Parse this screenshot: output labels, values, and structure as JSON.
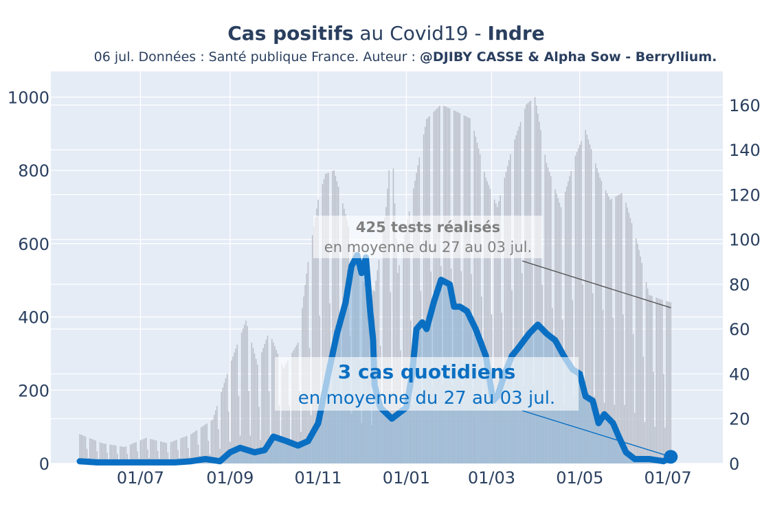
{
  "header": {
    "title_bold": "Cas positifs",
    "title_mid": " au Covid19 - ",
    "title_region": "Indre",
    "subtitle_plain": "06 jul. Données : Santé publique France. Auteur : ",
    "subtitle_bold": "@DJIBY CASSE & Alpha Sow - Berryllium."
  },
  "colors": {
    "background": "#ffffff",
    "plot_background": "#e5ecf6",
    "grid": "#ffffff",
    "cases_line": "#0a6fc2",
    "cases_fill": "#8ab4d8",
    "tests_bars": "#b8bcc6",
    "tests_annotation": "#7f7f7f",
    "text": "#2a3f5f"
  },
  "chart_data": {
    "type": "line",
    "x_start": "2020-05-20",
    "x_end": "2021-07-03",
    "xticks": [
      "01/07",
      "01/09",
      "01/11",
      "01/01",
      "01/03",
      "01/05",
      "01/07"
    ],
    "xtick_dates": [
      "2020-07-01",
      "2020-09-01",
      "2020-11-01",
      "2021-01-01",
      "2021-03-01",
      "2021-05-01",
      "2021-07-01"
    ],
    "y_left": {
      "range": [
        0,
        1070
      ],
      "ticks": [
        0,
        200,
        400,
        600,
        800,
        1000
      ],
      "series": "tests"
    },
    "y_right": {
      "range": [
        0,
        175
      ],
      "ticks": [
        0,
        20,
        40,
        60,
        80,
        100,
        120,
        140,
        160
      ],
      "series": "cases"
    },
    "grid": true,
    "series": [
      {
        "axis": "left",
        "style": "bars",
        "interpolation": "linear",
        "points": [
          [
            "2020-05-20",
            80
          ],
          [
            "2020-06-05",
            55
          ],
          [
            "2020-06-20",
            45
          ],
          [
            "2020-07-05",
            70
          ],
          [
            "2020-07-20",
            55
          ],
          [
            "2020-08-05",
            80
          ],
          [
            "2020-08-20",
            120
          ],
          [
            "2020-09-01",
            270
          ],
          [
            "2020-09-12",
            390
          ],
          [
            "2020-09-20",
            270
          ],
          [
            "2020-09-28",
            360
          ],
          [
            "2020-10-08",
            260
          ],
          [
            "2020-10-18",
            330
          ],
          [
            "2020-10-25",
            550
          ],
          [
            "2020-11-01",
            720
          ],
          [
            "2020-11-06",
            790
          ],
          [
            "2020-11-12",
            800
          ],
          [
            "2020-11-20",
            680
          ],
          [
            "2020-12-01",
            500
          ],
          [
            "2020-12-10",
            470
          ],
          [
            "2020-12-18",
            700
          ],
          [
            "2020-12-22",
            900
          ],
          [
            "2020-12-26",
            520
          ],
          [
            "2021-01-05",
            730
          ],
          [
            "2021-01-15",
            940
          ],
          [
            "2021-01-25",
            980
          ],
          [
            "2021-02-05",
            960
          ],
          [
            "2021-02-15",
            940
          ],
          [
            "2021-02-25",
            780
          ],
          [
            "2021-03-05",
            700
          ],
          [
            "2021-03-15",
            860
          ],
          [
            "2021-03-25",
            980
          ],
          [
            "2021-03-31",
            1000
          ],
          [
            "2021-04-08",
            820
          ],
          [
            "2021-04-18",
            700
          ],
          [
            "2021-04-28",
            840
          ],
          [
            "2021-05-05",
            910
          ],
          [
            "2021-05-15",
            780
          ],
          [
            "2021-05-22",
            720
          ],
          [
            "2021-05-31",
            740
          ],
          [
            "2021-06-10",
            600
          ],
          [
            "2021-06-18",
            460
          ],
          [
            "2021-06-28",
            445
          ],
          [
            "2021-07-03",
            440
          ]
        ]
      },
      {
        "axis": "right",
        "style": "line+area",
        "interpolation": "linear",
        "points": [
          [
            "2020-05-20",
            1
          ],
          [
            "2020-06-01",
            0.5
          ],
          [
            "2020-07-01",
            0.5
          ],
          [
            "2020-07-25",
            0.5
          ],
          [
            "2020-08-05",
            1
          ],
          [
            "2020-08-15",
            2
          ],
          [
            "2020-08-25",
            1
          ],
          [
            "2020-09-01",
            5
          ],
          [
            "2020-09-08",
            7
          ],
          [
            "2020-09-18",
            5
          ],
          [
            "2020-09-25",
            6
          ],
          [
            "2020-10-01",
            12
          ],
          [
            "2020-10-10",
            10
          ],
          [
            "2020-10-18",
            8
          ],
          [
            "2020-10-25",
            10
          ],
          [
            "2020-11-01",
            18
          ],
          [
            "2020-11-08",
            40
          ],
          [
            "2020-11-14",
            58
          ],
          [
            "2020-11-20",
            72
          ],
          [
            "2020-11-24",
            88
          ],
          [
            "2020-11-28",
            93
          ],
          [
            "2020-12-01",
            85
          ],
          [
            "2020-12-04",
            92
          ],
          [
            "2020-12-07",
            68
          ],
          [
            "2020-12-09",
            55
          ],
          [
            "2020-12-10",
            35
          ],
          [
            "2020-12-14",
            25
          ],
          [
            "2020-12-22",
            20
          ],
          [
            "2021-01-01",
            25
          ],
          [
            "2021-01-05",
            40
          ],
          [
            "2021-01-08",
            60
          ],
          [
            "2021-01-12",
            63
          ],
          [
            "2021-01-15",
            60
          ],
          [
            "2021-01-20",
            72
          ],
          [
            "2021-01-25",
            82
          ],
          [
            "2021-01-31",
            80
          ],
          [
            "2021-02-03",
            70
          ],
          [
            "2021-02-07",
            70
          ],
          [
            "2021-02-12",
            68
          ],
          [
            "2021-02-18",
            60
          ],
          [
            "2021-02-25",
            48
          ],
          [
            "2021-03-02",
            28
          ],
          [
            "2021-03-05",
            30
          ],
          [
            "2021-03-10",
            40
          ],
          [
            "2021-03-15",
            48
          ],
          [
            "2021-03-20",
            52
          ],
          [
            "2021-03-27",
            58
          ],
          [
            "2021-04-02",
            62
          ],
          [
            "2021-04-08",
            58
          ],
          [
            "2021-04-14",
            55
          ],
          [
            "2021-04-20",
            48
          ],
          [
            "2021-04-26",
            42
          ],
          [
            "2021-05-01",
            40
          ],
          [
            "2021-05-05",
            30
          ],
          [
            "2021-05-10",
            28
          ],
          [
            "2021-05-14",
            18
          ],
          [
            "2021-05-18",
            22
          ],
          [
            "2021-05-24",
            18
          ],
          [
            "2021-05-28",
            12
          ],
          [
            "2021-06-02",
            5
          ],
          [
            "2021-06-08",
            2
          ],
          [
            "2021-06-18",
            2
          ],
          [
            "2021-06-28",
            1
          ],
          [
            "2021-07-03",
            3
          ]
        ],
        "endpoint": [
          "2021-07-03",
          3
        ]
      }
    ],
    "annotations": [
      {
        "for": "tests",
        "headline": "425 tests réalisés",
        "detail": "en moyenne du 27 au 03 jul.",
        "target": [
          "2021-07-03",
          425
        ],
        "target_axis": "left"
      },
      {
        "for": "cases",
        "headline": "3 cas quotidiens",
        "detail": "en moyenne du 27 au 03 jul.",
        "target": [
          "2021-07-03",
          3
        ],
        "target_axis": "right"
      }
    ]
  }
}
